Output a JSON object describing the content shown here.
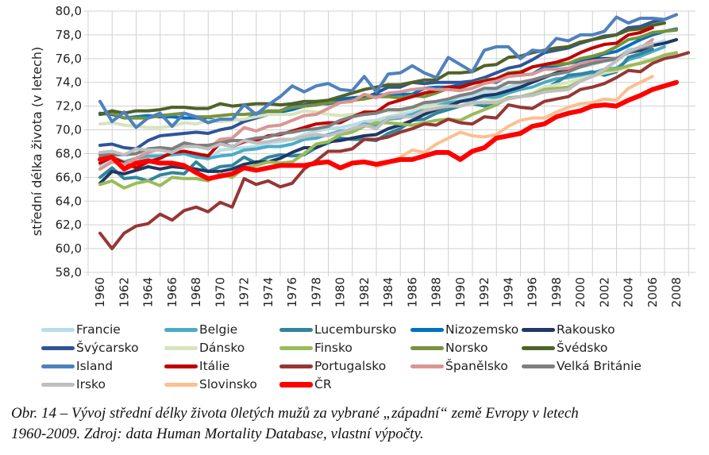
{
  "chart_data": {
    "type": "line",
    "title": "",
    "xlabel": "",
    "ylabel": "střední délka života (v letech)",
    "ylim": [
      58,
      80
    ],
    "yticks": [
      "58,0",
      "60,0",
      "62,0",
      "64,0",
      "66,0",
      "68,0",
      "70,0",
      "72,0",
      "74,0",
      "76,0",
      "78,0",
      "80,0"
    ],
    "xticks": [
      "1960",
      "1962",
      "1964",
      "1966",
      "1968",
      "1970",
      "1972",
      "1974",
      "1976",
      "1978",
      "1980",
      "1982",
      "1984",
      "1986",
      "1988",
      "1990",
      "1992",
      "1994",
      "1996",
      "1998",
      "2000",
      "2002",
      "2004",
      "2006",
      "2008"
    ],
    "grid": true,
    "legend_position": "bottom",
    "x_start": 1960,
    "series": [
      {
        "name": "Francie",
        "color": "#b7dde8",
        "values": [
          67.0,
          67.6,
          67.3,
          67.3,
          67.7,
          67.7,
          68.0,
          68.0,
          67.9,
          67.5,
          68.3,
          68.4,
          68.5,
          68.6,
          68.9,
          69.0,
          69.2,
          69.6,
          69.9,
          70.1,
          70.2,
          70.4,
          70.7,
          70.8,
          71.1,
          71.3,
          71.5,
          72.0,
          72.3,
          72.5,
          72.7,
          72.9,
          73.2,
          73.3,
          73.6,
          73.9,
          74.1,
          74.5,
          74.8,
          75.0,
          75.3,
          75.5,
          75.8,
          75.9,
          76.8,
          76.8,
          77.2,
          77.5
        ]
      },
      {
        "name": "Belgie",
        "color": "#4bacc6",
        "values": [
          67.7,
          67.7,
          67.3,
          67.6,
          67.8,
          67.8,
          67.9,
          68.0,
          67.7,
          67.6,
          67.8,
          67.9,
          68.3,
          68.4,
          68.6,
          68.6,
          68.8,
          69.2,
          69.3,
          69.6,
          69.9,
          70.0,
          70.5,
          70.4,
          70.9,
          71.0,
          71.3,
          71.7,
          72.0,
          72.3,
          72.4,
          72.5,
          72.8,
          72.7,
          73.1,
          73.4,
          73.6,
          74.0,
          74.3,
          74.4,
          74.6,
          74.8,
          75.1,
          75.2,
          75.9,
          76.2,
          76.6,
          77.0
        ]
      },
      {
        "name": "Lucembursko",
        "color": "#31859c",
        "values": [
          66.0,
          66.8,
          65.9,
          66.0,
          65.7,
          66.2,
          66.4,
          66.3,
          67.3,
          66.5,
          66.9,
          67.0,
          67.7,
          67.2,
          67.7,
          67.9,
          67.8,
          67.9,
          68.5,
          68.9,
          69.3,
          69.2,
          69.2,
          69.1,
          69.7,
          70.1,
          70.8,
          70.9,
          71.4,
          71.7,
          72.0,
          72.2,
          72.0,
          72.3,
          72.7,
          72.8,
          73.0,
          73.4,
          74.0,
          74.6,
          74.7,
          74.9,
          74.6,
          74.9,
          76.1,
          76.4,
          76.8
        ]
      },
      {
        "name": "Nizozemsko",
        "color": "#0070c0",
        "values": [
          71.4,
          71.3,
          71.0,
          71.1,
          71.2,
          71.1,
          71.1,
          71.0,
          71.0,
          70.9,
          70.7,
          70.9,
          70.8,
          71.3,
          71.5,
          71.5,
          71.7,
          72.0,
          72.1,
          72.4,
          72.6,
          72.7,
          72.8,
          72.9,
          73.0,
          73.0,
          73.0,
          73.5,
          73.6,
          73.6,
          73.8,
          74.0,
          74.1,
          74.0,
          74.6,
          74.6,
          74.7,
          75.3,
          75.4,
          75.6,
          75.8,
          76.0,
          76.4,
          76.6,
          77.1,
          77.6,
          78.0,
          78.3,
          78.5
        ]
      },
      {
        "name": "Rakousko",
        "color": "#1f3864",
        "values": [
          65.5,
          66.5,
          66.3,
          66.6,
          66.9,
          66.7,
          66.9,
          66.8,
          66.7,
          66.5,
          66.5,
          66.7,
          67.1,
          67.3,
          67.3,
          67.6,
          68.1,
          68.5,
          68.5,
          69.0,
          69.1,
          69.3,
          69.5,
          69.6,
          70.1,
          70.4,
          70.8,
          71.3,
          71.7,
          72.0,
          72.4,
          72.6,
          72.9,
          73.0,
          73.3,
          73.6,
          74.0,
          74.4,
          74.8,
          75.1,
          75.5,
          75.9,
          76.0,
          76.0,
          76.5,
          76.7,
          77.1,
          77.3,
          77.6
        ]
      },
      {
        "name": "Švýcarsko",
        "color": "#2f5597",
        "values": [
          68.7,
          68.8,
          68.5,
          68.4,
          69.1,
          69.5,
          69.6,
          69.7,
          69.8,
          69.7,
          70.0,
          70.2,
          70.7,
          71.0,
          71.3,
          71.6,
          72.0,
          72.1,
          72.2,
          72.2,
          72.4,
          72.6,
          72.7,
          73.1,
          73.6,
          73.6,
          74.0,
          73.9,
          74.0,
          74.0,
          74.0,
          74.1,
          74.4,
          74.8,
          75.2,
          75.4,
          75.9,
          76.5,
          76.7,
          76.9,
          77.3,
          77.6,
          77.9,
          78.0,
          78.6,
          78.7,
          79.1,
          79.3
        ]
      },
      {
        "name": "Dánsko",
        "color": "#d7e4bd",
        "values": [
          70.5,
          70.6,
          70.4,
          70.3,
          70.2,
          70.2,
          70.3,
          70.6,
          70.5,
          70.8,
          70.7,
          70.8,
          70.9,
          71.1,
          71.3,
          71.3,
          71.3,
          71.6,
          71.5,
          71.3,
          71.2,
          71.3,
          71.4,
          71.6,
          71.6,
          71.6,
          71.8,
          71.9,
          72.0,
          72.0,
          72.0,
          72.2,
          72.4,
          72.5,
          72.7,
          72.8,
          73.1,
          73.6,
          73.8,
          74.0,
          74.3,
          74.5,
          74.8,
          75.0,
          75.3,
          75.7,
          76.0,
          76.2,
          76.4
        ]
      },
      {
        "name": "Finsko",
        "color": "#9bbb59",
        "values": [
          65.4,
          65.7,
          65.1,
          65.5,
          65.7,
          65.3,
          66.0,
          65.9,
          65.9,
          65.7,
          66.3,
          66.0,
          66.8,
          67.0,
          67.3,
          67.2,
          67.3,
          68.0,
          68.8,
          69.0,
          69.6,
          69.8,
          70.3,
          70.6,
          70.6,
          70.5,
          70.4,
          70.6,
          70.8,
          70.9,
          70.8,
          71.3,
          71.7,
          72.1,
          72.7,
          72.8,
          73.0,
          73.4,
          73.5,
          73.6,
          74.1,
          74.5,
          75.0,
          75.1,
          75.4,
          75.6,
          75.9,
          76.3,
          76.5
        ]
      },
      {
        "name": "Norsko",
        "color": "#77933c",
        "values": [
          71.3,
          71.4,
          71.0,
          71.0,
          71.0,
          71.2,
          71.3,
          71.4,
          71.1,
          71.1,
          71.2,
          71.3,
          71.3,
          71.4,
          71.6,
          71.6,
          71.9,
          72.0,
          72.1,
          72.3,
          72.3,
          72.5,
          72.6,
          72.8,
          72.8,
          72.7,
          72.9,
          72.8,
          73.1,
          73.5,
          73.5,
          73.9,
          74.2,
          74.3,
          74.8,
          74.9,
          75.3,
          75.5,
          75.5,
          75.6,
          76.0,
          76.2,
          76.5,
          77.0,
          77.6,
          77.8,
          78.2,
          78.3,
          78.4
        ]
      },
      {
        "name": "Švédsko",
        "color": "#4f6228",
        "values": [
          71.3,
          71.6,
          71.4,
          71.6,
          71.6,
          71.7,
          71.9,
          71.9,
          71.8,
          71.8,
          72.2,
          72.0,
          72.1,
          72.2,
          72.2,
          72.1,
          72.2,
          72.4,
          72.4,
          72.5,
          72.8,
          73.1,
          73.4,
          73.6,
          73.8,
          73.8,
          74.0,
          74.2,
          74.2,
          74.8,
          74.8,
          74.9,
          75.4,
          75.5,
          76.1,
          76.2,
          76.5,
          76.7,
          76.9,
          77.0,
          77.4,
          77.6,
          77.8,
          78.0,
          78.4,
          78.5,
          78.8,
          79.0
        ]
      },
      {
        "name": "Island",
        "color": "#4f81bd",
        "values": [
          72.4,
          70.7,
          71.5,
          70.2,
          71.0,
          71.4,
          70.3,
          71.4,
          71.1,
          70.6,
          70.9,
          70.9,
          72.1,
          71.3,
          72.1,
          72.8,
          73.7,
          73.2,
          73.7,
          73.9,
          73.4,
          73.3,
          74.5,
          73.2,
          74.7,
          74.8,
          75.4,
          74.8,
          74.4,
          76.1,
          75.5,
          74.9,
          76.7,
          77.0,
          77.0,
          76.0,
          76.7,
          76.6,
          77.7,
          77.5,
          78.0,
          78.0,
          78.3,
          79.5,
          79.0,
          79.4,
          79.4,
          79.3,
          79.7
        ]
      },
      {
        "name": "Itálie",
        "color": "#c00000",
        "values": [
          67.2,
          67.7,
          67.2,
          66.8,
          67.3,
          67.6,
          68.1,
          68.2,
          68.0,
          67.8,
          68.9,
          68.6,
          69.0,
          69.1,
          69.5,
          69.6,
          69.9,
          70.2,
          70.5,
          70.6,
          70.6,
          71.1,
          71.5,
          71.5,
          72.2,
          72.5,
          72.8,
          73.1,
          73.3,
          73.6,
          73.6,
          73.9,
          74.1,
          74.3,
          74.7,
          74.8,
          75.3,
          75.5,
          75.7,
          76.0,
          76.5,
          76.9,
          77.2,
          77.3,
          78.0,
          78.2,
          78.6
        ]
      },
      {
        "name": "Portugalsko",
        "color": "#953735",
        "values": [
          61.3,
          60.0,
          61.3,
          61.9,
          62.1,
          62.9,
          62.4,
          63.2,
          63.5,
          63.1,
          63.9,
          63.5,
          65.9,
          65.4,
          65.7,
          65.2,
          65.5,
          66.7,
          67.4,
          68.2,
          68.2,
          68.4,
          69.2,
          69.2,
          69.4,
          69.8,
          70.1,
          70.5,
          70.4,
          70.9,
          70.6,
          70.5,
          71.1,
          71.0,
          72.1,
          71.9,
          71.8,
          72.4,
          72.6,
          72.8,
          73.4,
          73.6,
          73.9,
          74.4,
          75.0,
          74.9,
          75.6,
          76.0,
          76.2,
          76.5
        ]
      },
      {
        "name": "Španělsko",
        "color": "#d99694",
        "values": [
          66.7,
          67.3,
          67.1,
          67.6,
          68.1,
          68.4,
          68.3,
          68.8,
          68.7,
          68.4,
          69.2,
          69.3,
          70.2,
          69.9,
          70.3,
          70.4,
          70.8,
          71.2,
          71.3,
          71.8,
          72.3,
          72.4,
          73.0,
          72.7,
          73.1,
          73.2,
          73.4,
          73.5,
          73.4,
          73.4,
          73.3,
          73.5,
          73.9,
          74.1,
          74.5,
          74.6,
          74.7,
          75.1,
          75.1,
          75.2,
          75.6,
          75.8,
          75.9,
          76.0,
          76.6,
          76.9,
          77.6
        ]
      },
      {
        "name": "Velká Británie",
        "color": "#7f7f7f",
        "values": [
          67.9,
          67.9,
          67.9,
          68.0,
          68.4,
          68.5,
          68.4,
          68.9,
          68.7,
          68.7,
          68.9,
          69.1,
          69.1,
          69.3,
          69.4,
          69.7,
          69.8,
          70.0,
          70.1,
          70.3,
          70.8,
          71.1,
          71.3,
          71.4,
          71.7,
          71.7,
          71.9,
          72.3,
          72.4,
          72.6,
          72.9,
          73.1,
          73.5,
          73.5,
          74.0,
          74.0,
          74.2,
          74.5,
          74.7,
          74.9,
          75.3,
          75.6,
          75.8,
          76.0,
          76.5,
          76.9,
          77.1
        ]
      },
      {
        "name": "Irsko",
        "color": "#bfbfbf",
        "values": [
          68.1,
          68.2,
          67.9,
          68.4,
          68.3,
          68.3,
          68.1,
          68.6,
          68.6,
          68.4,
          68.8,
          68.6,
          69.1,
          68.9,
          69.0,
          69.2,
          69.2,
          69.4,
          69.6,
          69.5,
          69.8,
          70.1,
          70.4,
          70.1,
          71.0,
          71.1,
          71.1,
          71.6,
          71.8,
          72.0,
          72.0,
          72.3,
          72.3,
          72.3,
          72.6,
          72.8,
          72.9,
          73.2,
          73.3,
          73.4,
          74.1,
          74.5,
          75.1,
          75.8,
          76.6,
          77.0,
          77.3
        ]
      },
      {
        "name": "Slovinsko",
        "color": "#fac090",
        "values": [
          null,
          null,
          null,
          null,
          null,
          null,
          null,
          null,
          null,
          null,
          null,
          null,
          null,
          null,
          null,
          null,
          null,
          null,
          null,
          null,
          null,
          null,
          null,
          66.9,
          67.2,
          67.7,
          68.3,
          68.1,
          68.8,
          69.3,
          69.8,
          69.5,
          69.4,
          69.6,
          70.3,
          70.8,
          71.0,
          71.0,
          71.5,
          71.9,
          72.2,
          72.3,
          72.6,
          72.5,
          73.5,
          74.0,
          74.5
        ]
      },
      {
        "name": "ČR",
        "color": "#ff0000",
        "values": [
          67.5,
          67.7,
          66.7,
          67.2,
          67.4,
          67.2,
          67.2,
          67.0,
          66.4,
          65.9,
          66.1,
          66.3,
          66.8,
          66.6,
          66.8,
          67.0,
          67.0,
          67.0,
          67.2,
          67.3,
          66.8,
          67.2,
          67.3,
          67.1,
          67.3,
          67.5,
          67.5,
          67.8,
          68.1,
          68.1,
          67.5,
          68.2,
          68.5,
          69.3,
          69.5,
          69.7,
          70.3,
          70.5,
          71.1,
          71.4,
          71.6,
          72.0,
          72.1,
          72.0,
          72.5,
          72.9,
          73.4,
          73.7,
          74.0
        ]
      }
    ]
  },
  "caption": {
    "line1": "Obr. 14 – Vývoj střední délky života 0letých mužů za vybrané „západní“ země Evropy v letech",
    "line2": "1960-2009. Zdroj: data Human Mortality Database, vlastní výpočty."
  }
}
